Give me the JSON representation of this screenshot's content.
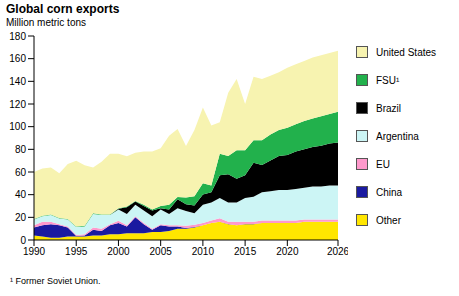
{
  "chart_data": {
    "type": "area",
    "title": "Global corn exports",
    "subtitle": "Million metric tons",
    "footnote": "¹ Former Soviet Union.",
    "stacked": true,
    "grid": false,
    "legend": "right",
    "x": [
      1990,
      1991,
      1992,
      1993,
      1994,
      1995,
      1996,
      1997,
      1998,
      1999,
      2000,
      2001,
      2002,
      2003,
      2004,
      2005,
      2006,
      2007,
      2008,
      2009,
      2010,
      2011,
      2012,
      2013,
      2014,
      2015,
      2016,
      2017,
      2018,
      2019,
      2020,
      2021,
      2022,
      2023,
      2024,
      2025,
      2026
    ],
    "xlim": [
      1990,
      2026
    ],
    "xticks": [
      1990,
      1995,
      2000,
      2005,
      2010,
      2015,
      2020,
      2026
    ],
    "ylim": [
      0,
      180
    ],
    "yticks": [
      0,
      20,
      40,
      60,
      80,
      100,
      120,
      140,
      160,
      180
    ],
    "series": [
      {
        "name": "Other",
        "color": "#ffe600",
        "values": [
          4,
          3,
          2,
          2,
          3,
          3,
          3,
          4,
          4,
          5,
          5,
          6,
          6,
          6,
          7,
          7,
          8,
          10,
          10,
          11,
          13,
          15,
          16,
          14,
          13,
          14,
          14,
          15,
          15,
          15,
          15,
          15,
          16,
          16,
          16,
          16,
          16
        ]
      },
      {
        "name": "China",
        "color": "#1a1aa0",
        "values": [
          7,
          10,
          12,
          11,
          8,
          0.5,
          1,
          5,
          4,
          8,
          10,
          6,
          14,
          8,
          2,
          6,
          4,
          2,
          0.5,
          0.5,
          0.1,
          0.1,
          0.1,
          0.1,
          0.1,
          0.1,
          0.1,
          0.1,
          0.1,
          0.1,
          0.1,
          0.1,
          0.1,
          0.1,
          0.1,
          0.1,
          0.1
        ]
      },
      {
        "name": "EU",
        "color": "#ff99cc",
        "values": [
          2,
          3,
          2,
          1,
          1,
          1,
          1,
          2,
          2,
          1,
          2,
          1,
          1,
          1,
          1,
          1,
          1,
          1,
          2,
          2,
          2,
          2,
          3,
          2,
          3,
          2,
          2,
          2,
          2,
          2,
          2,
          2,
          2,
          2,
          2,
          2,
          2
        ]
      },
      {
        "name": "Argentina",
        "color": "#ccf5f5",
        "values": [
          5,
          5,
          6,
          5,
          6,
          7,
          7,
          12,
          12,
          8,
          10,
          10,
          10,
          11,
          11,
          13,
          10,
          15,
          13,
          10,
          16,
          16,
          18,
          17,
          17,
          21,
          22,
          25,
          26,
          27,
          27,
          28,
          28,
          29,
          29,
          30,
          30
        ]
      },
      {
        "name": "Brazil",
        "color": "#000000",
        "values": [
          0,
          0,
          0,
          0,
          0,
          0,
          0,
          0,
          0,
          0,
          0.5,
          6,
          3,
          4,
          5,
          1,
          4,
          8,
          6,
          7,
          9,
          9,
          20,
          25,
          21,
          20,
          30,
          24,
          27,
          30,
          31,
          33,
          34,
          35,
          36,
          37,
          38
        ]
      },
      {
        "name": "FSU¹",
        "color": "#22b14c",
        "values": [
          0.5,
          0.5,
          0.5,
          0.5,
          0.5,
          0.5,
          0.5,
          0.5,
          0.5,
          0.5,
          0.5,
          0.5,
          0.5,
          1,
          1,
          2,
          4,
          2,
          6,
          8,
          10,
          6,
          19,
          16,
          25,
          22,
          20,
          22,
          23,
          23,
          24,
          24,
          25,
          25,
          26,
          26,
          27
        ]
      },
      {
        "name": "United States",
        "color": "#f7f3b0",
        "values": [
          41.5,
          41.5,
          41.5,
          39.5,
          48.5,
          58,
          53.5,
          40.5,
          46.5,
          53.5,
          48,
          44.5,
          42.5,
          47,
          51,
          51,
          61,
          60,
          45.5,
          58.5,
          66.9,
          52.9,
          27.9,
          55.9,
          62.9,
          40.9,
          55.9,
          53.9,
          51.9,
          50.9,
          52.9,
          52.9,
          52.9,
          53.9,
          53.9,
          53.9,
          53.9
        ]
      }
    ]
  }
}
